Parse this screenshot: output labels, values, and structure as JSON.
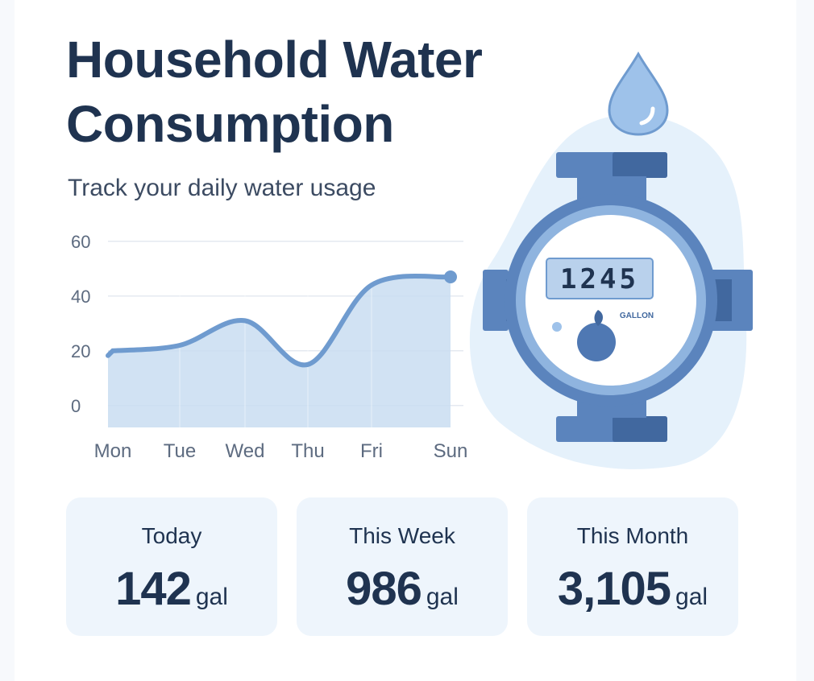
{
  "header": {
    "title": "Household Water\nConsumption",
    "subtitle": "Track your daily water usage"
  },
  "chart_data": {
    "type": "area",
    "categories": [
      "Mon",
      "Tue",
      "Wed",
      "Thu",
      "Fri",
      "Sun"
    ],
    "values": [
      20,
      22,
      31,
      15,
      44,
      47
    ],
    "y_ticks": [
      0,
      20,
      40,
      60
    ],
    "ylim": [
      -8,
      62
    ],
    "grid": true,
    "line_color": "#6f9bcf",
    "fill_color": "#c9ddf1"
  },
  "meter": {
    "reading": "1245",
    "unit_label": "GALLON",
    "colors": {
      "body": "#5b84bd",
      "dark": "#41689f",
      "face": "#ffffff",
      "display": "#b9d1ec",
      "drop": "#9ec2ea",
      "blob": "#e5f1fb"
    }
  },
  "stats": [
    {
      "label": "Today",
      "value": "142",
      "unit": "gal"
    },
    {
      "label": "This Week",
      "value": "986",
      "unit": "gal"
    },
    {
      "label": "This Month",
      "value": "3,105",
      "unit": "gal"
    }
  ]
}
